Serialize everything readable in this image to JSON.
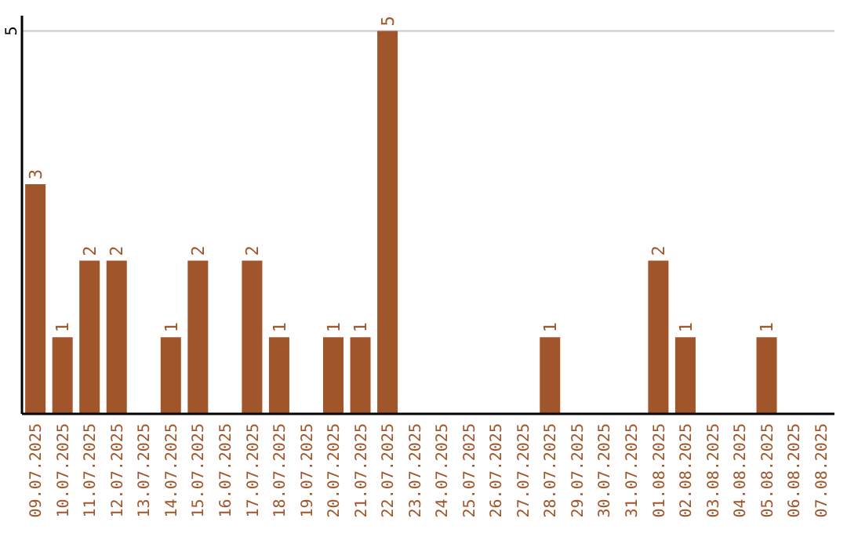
{
  "chart_data": {
    "type": "bar",
    "categories": [
      "09.07.2025",
      "10.07.2025",
      "11.07.2025",
      "12.07.2025",
      "13.07.2025",
      "14.07.2025",
      "15.07.2025",
      "16.07.2025",
      "17.07.2025",
      "18.07.2025",
      "19.07.2025",
      "20.07.2025",
      "21.07.2025",
      "22.07.2025",
      "23.07.2025",
      "24.07.2025",
      "25.07.2025",
      "26.07.2025",
      "27.07.2025",
      "28.07.2025",
      "29.07.2025",
      "30.07.2025",
      "31.07.2025",
      "01.08.2025",
      "02.08.2025",
      "03.08.2025",
      "04.08.2025",
      "05.08.2025",
      "06.08.2025",
      "07.08.2025"
    ],
    "values": [
      3,
      1,
      2,
      2,
      0,
      1,
      2,
      0,
      2,
      1,
      0,
      1,
      1,
      5,
      0,
      0,
      0,
      0,
      0,
      1,
      0,
      0,
      0,
      2,
      1,
      0,
      0,
      1,
      0,
      0
    ],
    "value_labels": [
      "3",
      "1",
      "2",
      "2",
      null,
      "1",
      "2",
      null,
      "2",
      "1",
      null,
      "1",
      "1",
      "5",
      null,
      null,
      null,
      null,
      null,
      "1",
      null,
      null,
      null,
      "2",
      "1",
      null,
      null,
      "1",
      null,
      null
    ],
    "color": "#a0562a",
    "ylim": [
      0,
      5.2
    ],
    "yticks": [
      5
    ],
    "grid": "y"
  }
}
